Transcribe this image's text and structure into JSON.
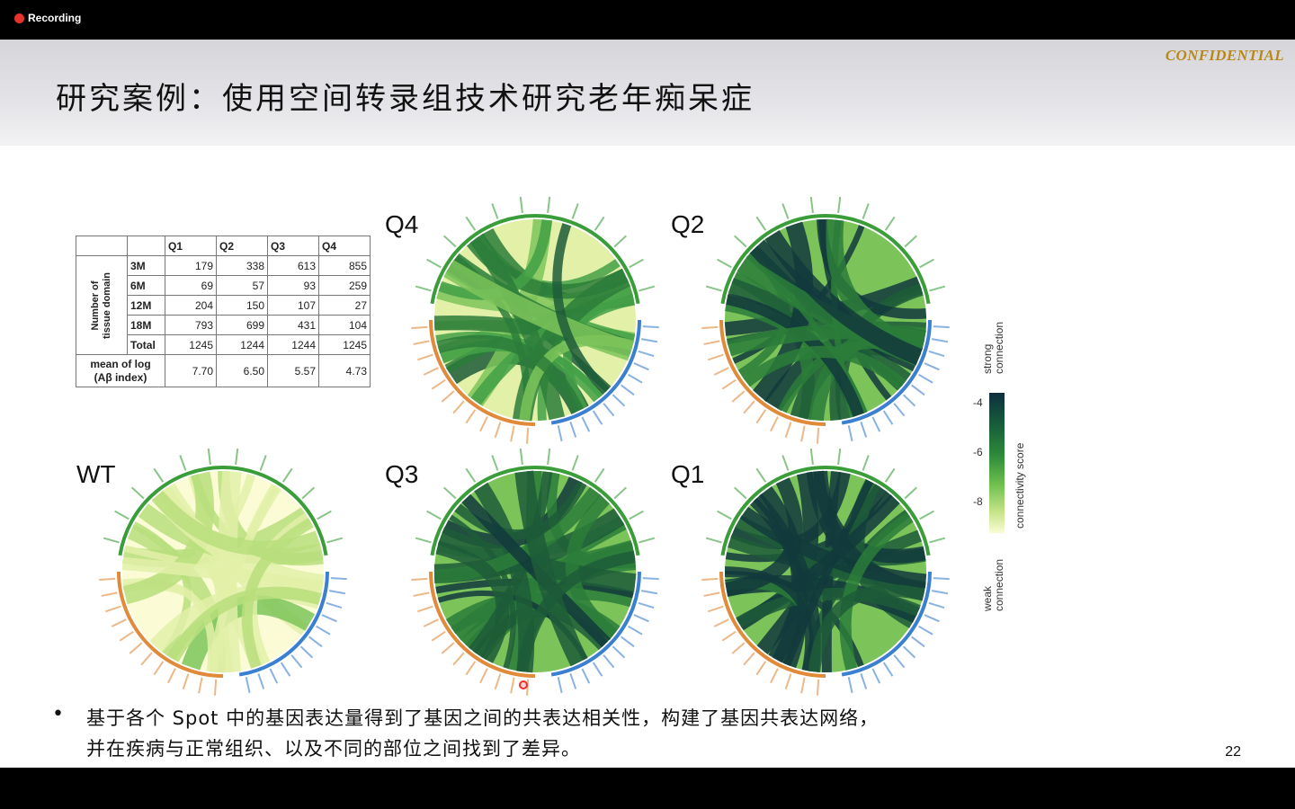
{
  "recording": {
    "label": "Recording",
    "color": "#e8322d"
  },
  "slide": {
    "confidential": "CONFIDENTIAL",
    "title": "研究案例：使用空间转录组技术研究老年痴呆症",
    "page_number": "22",
    "bullet_symbol": "•",
    "bullet_lines": [
      "基于各个 Spot 中的基因表达量得到了基因之间的共表达相关性，构建了基因共表达网络，",
      "并在疾病与正常组织、以及不同的部位之间找到了差异。"
    ]
  },
  "table": {
    "columns": [
      "Q1",
      "Q2",
      "Q3",
      "Q4"
    ],
    "group_label_line1": "Number of",
    "group_label_line2": "tissue domain",
    "rows": [
      {
        "label": "3M",
        "values": [
          "179",
          "338",
          "613",
          "855"
        ]
      },
      {
        "label": "6M",
        "values": [
          "69",
          "57",
          "93",
          "259"
        ]
      },
      {
        "label": "12M",
        "values": [
          "204",
          "150",
          "107",
          "27"
        ]
      },
      {
        "label": "18M",
        "values": [
          "793",
          "699",
          "431",
          "104"
        ]
      },
      {
        "label": "Total",
        "values": [
          "1245",
          "1244",
          "1244",
          "1245"
        ]
      }
    ],
    "mean_label_line1": "mean of log",
    "mean_label_line2": "(Aβ index)",
    "mean_values": [
      "7.70",
      "6.50",
      "5.57",
      "4.73"
    ]
  },
  "panels": [
    {
      "label": "Q4",
      "darkness": 0.55
    },
    {
      "label": "Q2",
      "darkness": 0.8
    },
    {
      "label": "WT",
      "darkness": 0.1
    },
    {
      "label": "Q3",
      "darkness": 0.75
    },
    {
      "label": "Q1",
      "darkness": 0.9
    }
  ],
  "colorbar": {
    "ticks": [
      "-4",
      "-6",
      "-8"
    ],
    "axis_label": "connectivity score",
    "top_line1": "strong",
    "top_line2": "connection",
    "bottom_line1": "weak",
    "bottom_line2": "connection"
  },
  "colors": {
    "green_genes": "#3a9d3a",
    "blue_genes": "#3a7fd0",
    "orange_genes": "#e08a3a",
    "dark_link": "#123a3c"
  }
}
